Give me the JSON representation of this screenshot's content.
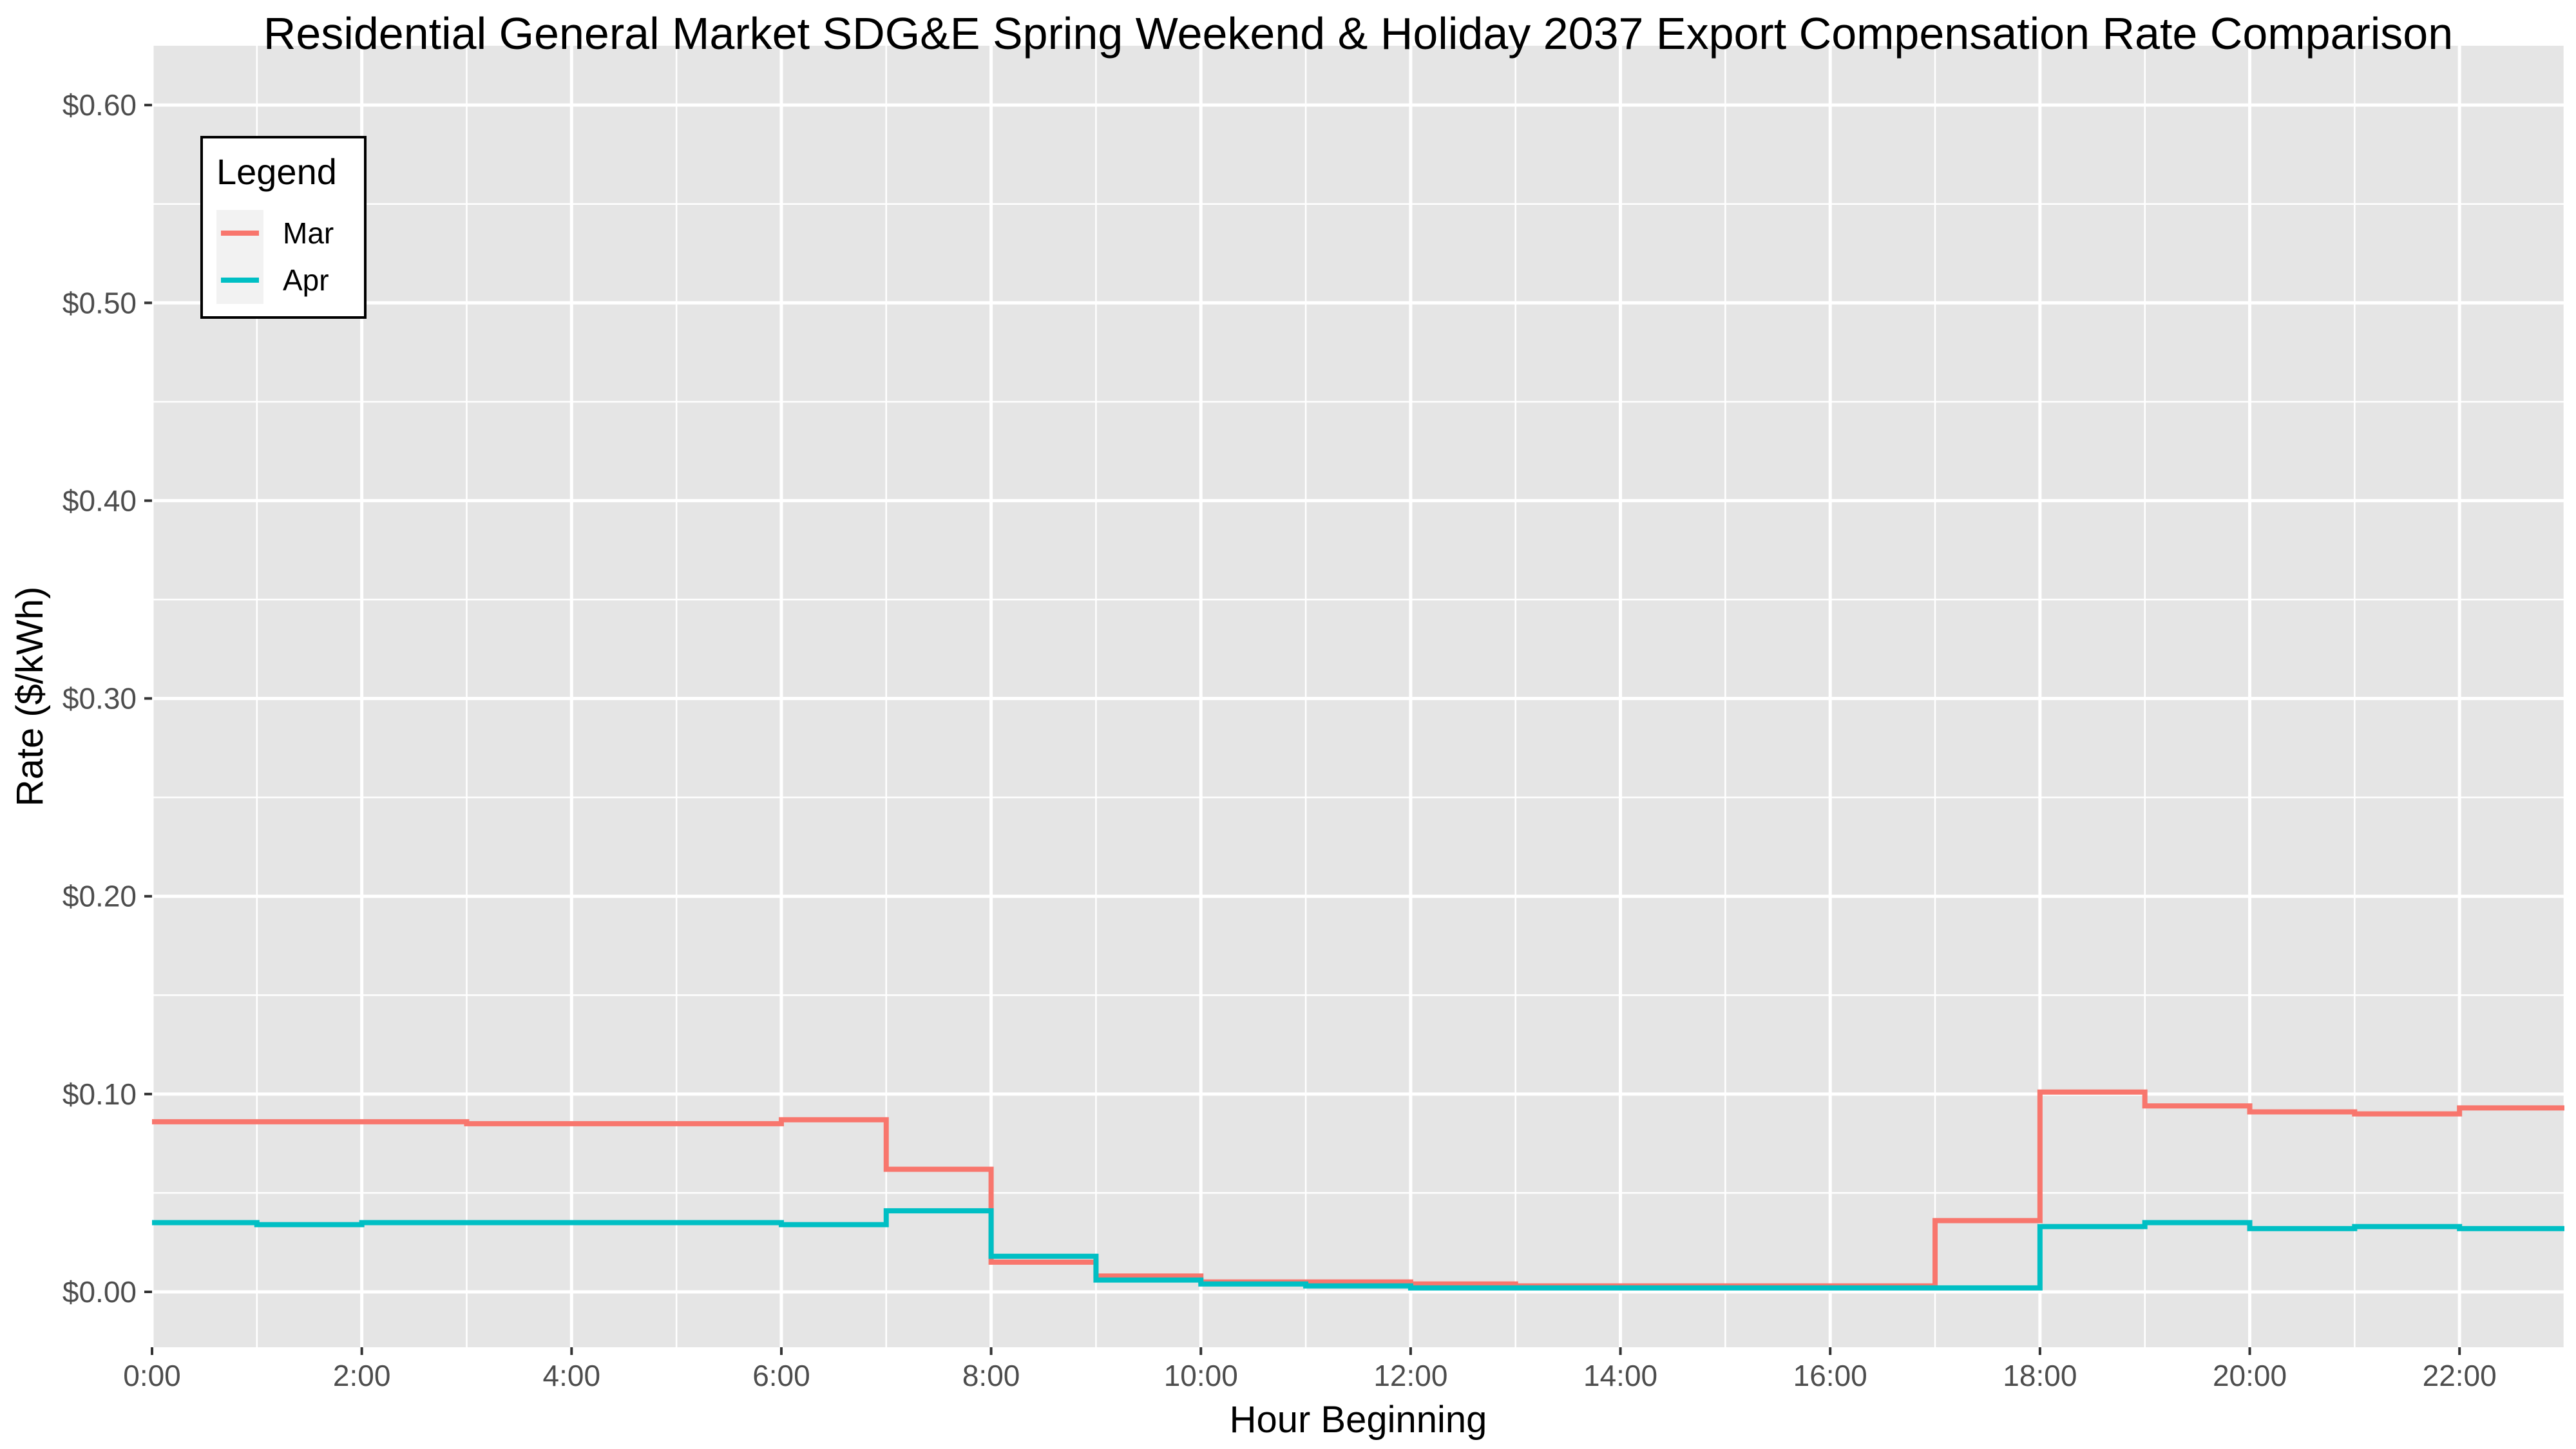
{
  "chart_data": {
    "type": "line",
    "step": true,
    "title": "Residential General Market SDG&E Spring Weekend & Holiday 2037 Export Compensation Rate Comparison",
    "xlabel": "Hour Beginning",
    "ylabel": "Rate ($/kWh)",
    "x": [
      0,
      1,
      2,
      3,
      4,
      5,
      6,
      7,
      8,
      9,
      10,
      11,
      12,
      13,
      14,
      15,
      16,
      17,
      18,
      19,
      20,
      21,
      22,
      23
    ],
    "xlim": [
      0,
      23
    ],
    "ylim": [
      -0.028,
      0.63
    ],
    "x_ticks": [
      {
        "value": 0,
        "label": "0:00"
      },
      {
        "value": 2,
        "label": "2:00"
      },
      {
        "value": 4,
        "label": "4:00"
      },
      {
        "value": 6,
        "label": "6:00"
      },
      {
        "value": 8,
        "label": "8:00"
      },
      {
        "value": 10,
        "label": "10:00"
      },
      {
        "value": 12,
        "label": "12:00"
      },
      {
        "value": 14,
        "label": "14:00"
      },
      {
        "value": 16,
        "label": "16:00"
      },
      {
        "value": 18,
        "label": "18:00"
      },
      {
        "value": 20,
        "label": "20:00"
      },
      {
        "value": 22,
        "label": "22:00"
      }
    ],
    "y_ticks": [
      {
        "value": 0.0,
        "label": "$0.00"
      },
      {
        "value": 0.1,
        "label": "$0.10"
      },
      {
        "value": 0.2,
        "label": "$0.20"
      },
      {
        "value": 0.3,
        "label": "$0.30"
      },
      {
        "value": 0.4,
        "label": "$0.40"
      },
      {
        "value": 0.5,
        "label": "$0.50"
      },
      {
        "value": 0.6,
        "label": "$0.60"
      }
    ],
    "grid": true,
    "legend": {
      "title": "Legend",
      "position": "top-left"
    },
    "series": [
      {
        "name": "Mar",
        "color": "#F8766D",
        "values": [
          0.086,
          0.086,
          0.086,
          0.085,
          0.085,
          0.085,
          0.087,
          0.062,
          0.015,
          0.008,
          0.005,
          0.005,
          0.004,
          0.003,
          0.003,
          0.003,
          0.003,
          0.036,
          0.101,
          0.094,
          0.091,
          0.09,
          0.093,
          0.093
        ]
      },
      {
        "name": "Apr",
        "color": "#00BFC4",
        "values": [
          0.035,
          0.034,
          0.035,
          0.035,
          0.035,
          0.035,
          0.034,
          0.041,
          0.018,
          0.006,
          0.004,
          0.003,
          0.002,
          0.002,
          0.002,
          0.002,
          0.002,
          0.002,
          0.033,
          0.035,
          0.032,
          0.033,
          0.032,
          0.032
        ]
      }
    ]
  }
}
